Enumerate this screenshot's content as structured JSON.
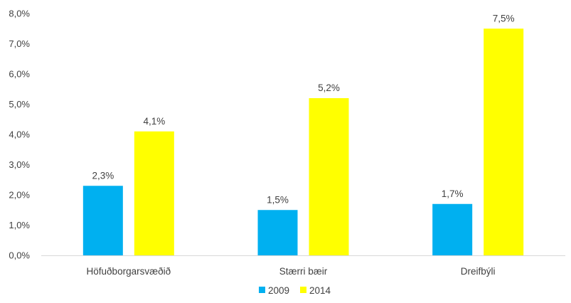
{
  "chart_data": {
    "type": "bar",
    "categories": [
      "Höfuðborgarsvæðið",
      "Stærri bæir",
      "Dreifbýli"
    ],
    "series": [
      {
        "name": "2009",
        "values": [
          2.3,
          1.5,
          1.7
        ],
        "labels": [
          "2,3%",
          "1,5%",
          "1,7%"
        ],
        "color": "#00B0F0"
      },
      {
        "name": "2014",
        "values": [
          4.1,
          5.2,
          7.5
        ],
        "labels": [
          "4,1%",
          "5,2%",
          "7,5%"
        ],
        "color": "#FFFF00"
      }
    ],
    "ylim": [
      0,
      8
    ],
    "yticks": [
      0,
      1,
      2,
      3,
      4,
      5,
      6,
      7,
      8
    ],
    "ytick_labels": [
      "0,0%",
      "1,0%",
      "2,0%",
      "3,0%",
      "4,0%",
      "5,0%",
      "6,0%",
      "7,0%",
      "8,0%"
    ],
    "grid": false,
    "legend_position": "bottom",
    "title": "",
    "xlabel": "",
    "ylabel": ""
  }
}
